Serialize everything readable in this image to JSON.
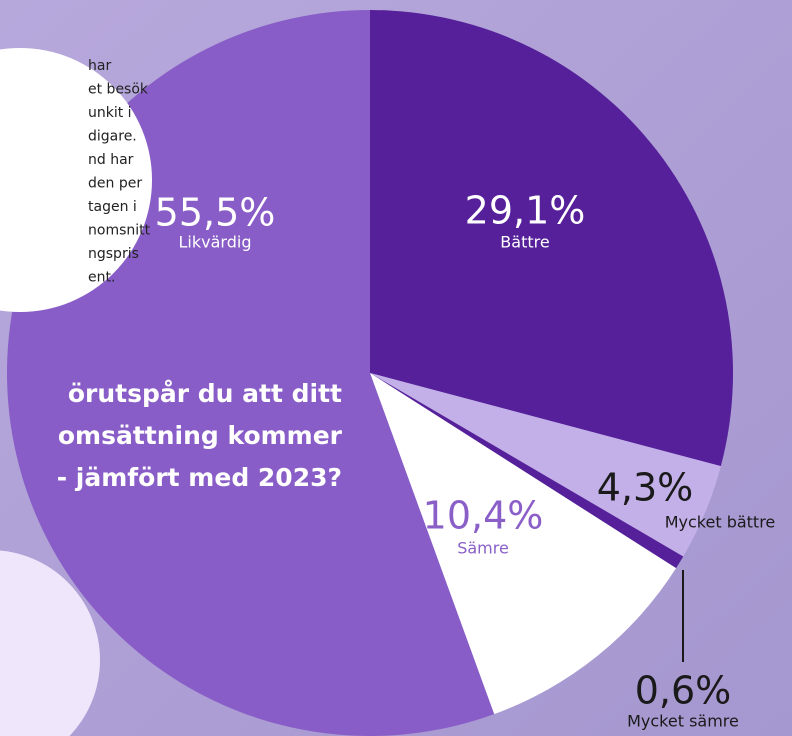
{
  "chart_data": {
    "type": "pie",
    "categories": [
      "Bättre",
      "Mycket bättre",
      "Mycket sämre",
      "Sämre",
      "Likvärdig"
    ],
    "values": [
      29.1,
      4.3,
      0.6,
      10.4,
      55.5
    ],
    "value_labels": [
      "29,1%",
      "4,3%",
      "0,6%",
      "10,4%",
      "55,5%"
    ],
    "colors": [
      "#55209a",
      "#c4b0e8",
      "#55209a",
      "#ffffff",
      "#895dc7"
    ],
    "question": [
      "örutspår du att ditt",
      "omsättning kommer",
      "- jämfört med 2023?"
    ],
    "note": [
      "har",
      "et besök",
      "unkit i",
      "digare.",
      "nd har",
      "den per",
      "tagen i",
      "nomsnitt",
      "ngspris",
      "ent."
    ]
  }
}
